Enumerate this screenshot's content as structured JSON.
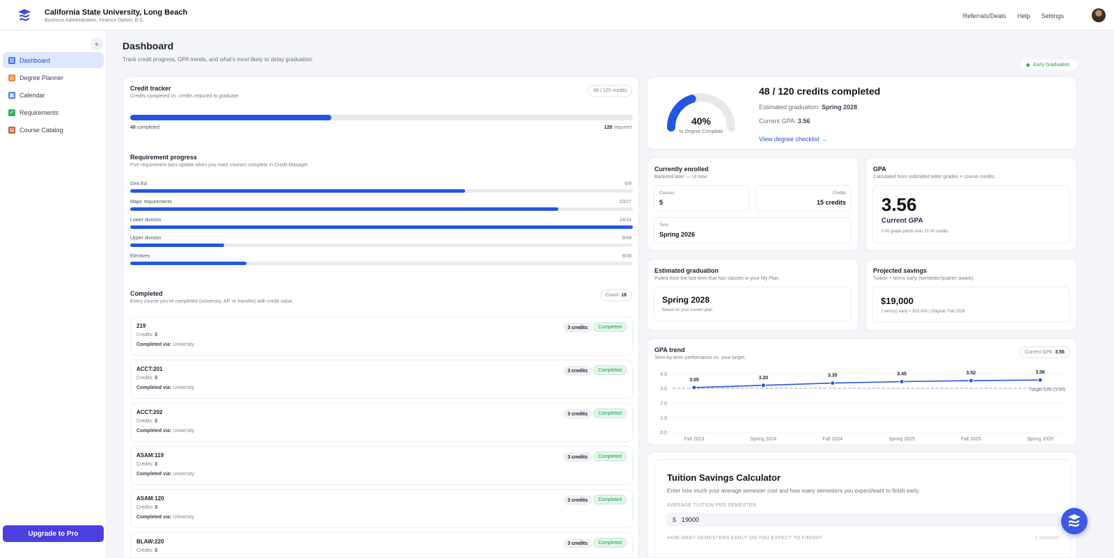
{
  "header": {
    "org_name": "California State University, Long Beach",
    "program": "Business Administration, Finance Option, B.S.",
    "nav": [
      "Referrals/Deals",
      "Help",
      "Settings"
    ]
  },
  "sidebar": {
    "collapse_icon": "«",
    "items": [
      {
        "label": "Dashboard",
        "icon": "bar-chart-icon",
        "color": "#3a6ee8",
        "active": true
      },
      {
        "label": "Degree Planner",
        "icon": "target-icon",
        "color": "#e5863a",
        "active": false
      },
      {
        "label": "Calendar",
        "icon": "calendar-icon",
        "color": "#4a7fe0",
        "active": false
      },
      {
        "label": "Requirements",
        "icon": "check-icon",
        "color": "#2bb45a",
        "active": false
      },
      {
        "label": "Course Catalog",
        "icon": "books-icon",
        "color": "#c2553a",
        "active": false
      }
    ],
    "upgrade_label": "Upgrade to Pro"
  },
  "page": {
    "title": "Dashboard",
    "subtitle": "Track credit progress, GPA trends, and what's most likely to delay graduation.",
    "badge": "Early Graduation"
  },
  "credit_tracker": {
    "title": "Credit tracker",
    "subtitle": "Credits completed vs. credits required to graduate.",
    "pill": "48 / 120 credits",
    "completed": 48,
    "required": 120,
    "completed_num": "48",
    "completed_word": "completed",
    "required_num": "120",
    "required_word": "required"
  },
  "requirements": {
    "title": "Requirement progress",
    "subtitle": "Five requirement bars update when you mark courses complete in Credit Manager.",
    "rows": [
      {
        "label": "Gen Ed",
        "value": "6/9",
        "done": 6,
        "total": 9
      },
      {
        "label": "Major requirements",
        "value": "23/27",
        "done": 23,
        "total": 27
      },
      {
        "label": "Lower division",
        "value": "24/24",
        "done": 24,
        "total": 24
      },
      {
        "label": "Upper division",
        "value": "9/48",
        "done": 9,
        "total": 48
      },
      {
        "label": "Electives",
        "value": "9/39",
        "done": 9,
        "total": 39
      }
    ]
  },
  "completed": {
    "title": "Completed",
    "subtitle": "Every course you've completed (university, AP, or transfer) with credit value.",
    "count_label": "Count:",
    "count": "16",
    "credits_label": "Credits:",
    "via_label": "Completed via:",
    "courses": [
      {
        "code": "219",
        "credits": "3",
        "via": "University",
        "pill": "3 credits",
        "status": "Completed"
      },
      {
        "code": "ACCT:201",
        "credits": "3",
        "via": "University",
        "pill": "3 credits",
        "status": "Completed"
      },
      {
        "code": "ACCT:202",
        "credits": "3",
        "via": "University",
        "pill": "3 credits",
        "status": "Completed"
      },
      {
        "code": "ASAM:119",
        "credits": "3",
        "via": "University",
        "pill": "3 credits",
        "status": "Completed"
      },
      {
        "code": "ASAM:120",
        "credits": "3",
        "via": "University",
        "pill": "3 credits",
        "status": "Completed"
      },
      {
        "code": "BLAW:220",
        "credits": "3",
        "via": "University",
        "pill": "3 credits",
        "status": "Completed"
      }
    ]
  },
  "summary": {
    "percent": "40%",
    "percent_value": 40,
    "percent_label": "to Degree Complete",
    "headline": "48 / 120 credits completed",
    "est_label": "Estimated graduation:",
    "est_value": "Spring 2028",
    "gpa_label": "Current GPA:",
    "gpa_value": "3.56",
    "link": "View degree checklist →",
    "accent": "#2356e2"
  },
  "enrolled": {
    "title": "Currently enrolled",
    "subtitle": "Backend later — UI now.",
    "classes_label": "Classes",
    "classes_value": "5",
    "credits_label": "Credits",
    "credits_value": "15 credits",
    "term_label": "Term",
    "term_value": "Spring 2026"
  },
  "gpa": {
    "title": "GPA",
    "subtitle": "Calculated from submitted letter grades × course credits.",
    "value": "3.56",
    "label": "Current GPA",
    "note": "0.00 grade points over 15.00 credits."
  },
  "est_grad": {
    "title": "Estimated graduation",
    "subtitle": "Pulled from the last term that has classes in your My Plan.",
    "value": "Spring 2028",
    "note": "Based on your current plan"
  },
  "savings": {
    "title": "Projected savings",
    "subtitle": "Tuition × terms early (semester/quarter aware).",
    "value": "$19,000",
    "note": "1 term(s) early × $19,000 | Original: Fall 2028"
  },
  "gpa_trend": {
    "title": "GPA trend",
    "subtitle": "Term-by-term performance vs. your target.",
    "pill_label": "Current GPA",
    "pill_value": "3.56"
  },
  "chart_data": {
    "type": "line",
    "categories": [
      "Fall 2023",
      "Spring 2024",
      "Fall 2024",
      "Spring 2025",
      "Fall 2025",
      "Spring 2026"
    ],
    "values": [
      3.05,
      3.2,
      3.35,
      3.45,
      3.52,
      3.56
    ],
    "labels": [
      "3.05",
      "3.20",
      "3.35",
      "3.45",
      "3.52",
      "3.56"
    ],
    "target": 3.0,
    "target_label": "Target GPA (3.00)",
    "yticks": [
      "4.0",
      "3.0",
      "2.0",
      "1.0",
      "0.0"
    ],
    "ylim": [
      0,
      4
    ],
    "color": "#2356e2"
  },
  "calculator": {
    "title": "Tuition Savings Calculator",
    "description": "Enter how much your average semester cost and how many semesters you expect/want to finish early.",
    "tuition_label": "AVERAGE TUITION PER SEMESTER",
    "currency": "$",
    "tuition_value": "19000",
    "early_label": "HOW MANY SEMESTERS EARLY DO YOU EXPECT TO FINISH?",
    "early_hint": "1 semester"
  }
}
